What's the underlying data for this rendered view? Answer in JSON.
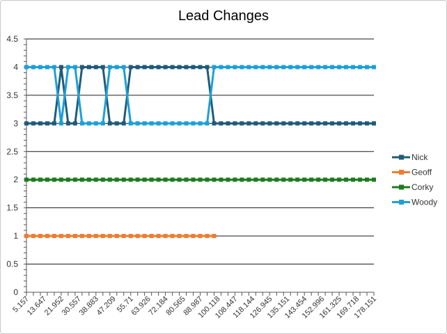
{
  "chart_data": {
    "type": "line",
    "title": "Lead Changes",
    "xlabel": "",
    "ylabel": "",
    "ylim": [
      0,
      4.5
    ],
    "yticks": [
      "0",
      "0.5",
      "1",
      "1.5",
      "2",
      "2.5",
      "3",
      "3.5",
      "4",
      "4.5"
    ],
    "x_tick_labels": [
      "5.157",
      "13.647",
      "21.952",
      "30.557",
      "38.883",
      "47.209",
      "55.71",
      "63.926",
      "72.184",
      "80.565",
      "88.987",
      "100.118",
      "108.447",
      "118.144",
      "126.945",
      "135.151",
      "143.454",
      "152.996",
      "161.325",
      "169.718",
      "178.151"
    ],
    "grid": true,
    "legend": "right",
    "series": [
      {
        "name": "Nick",
        "color": "#1f5b7a",
        "values": [
          3,
          3,
          3,
          3,
          3,
          4,
          3,
          3,
          4,
          4,
          4,
          4,
          3,
          3,
          3,
          4,
          4,
          4,
          4,
          4,
          4,
          4,
          4,
          4,
          4,
          4,
          4,
          3,
          3,
          3,
          3,
          3,
          3,
          3,
          3,
          3,
          3,
          3,
          3,
          3,
          3,
          3,
          3,
          3,
          3,
          3,
          3,
          3,
          3,
          3,
          3
        ]
      },
      {
        "name": "Geoff",
        "color": "#ed7d31",
        "values": [
          1,
          1,
          1,
          1,
          1,
          1,
          1,
          1,
          1,
          1,
          1,
          1,
          1,
          1,
          1,
          1,
          1,
          1,
          1,
          1,
          1,
          1,
          1,
          1,
          1,
          1,
          1,
          1
        ]
      },
      {
        "name": "Corky",
        "color": "#1e7b1e",
        "values": [
          2,
          2,
          2,
          2,
          2,
          2,
          2,
          2,
          2,
          2,
          2,
          2,
          2,
          2,
          2,
          2,
          2,
          2,
          2,
          2,
          2,
          2,
          2,
          2,
          2,
          2,
          2,
          2,
          2,
          2,
          2,
          2,
          2,
          2,
          2,
          2,
          2,
          2,
          2,
          2,
          2,
          2,
          2,
          2,
          2,
          2,
          2,
          2,
          2,
          2,
          2
        ]
      },
      {
        "name": "Woody",
        "color": "#1ca0d8",
        "values": [
          4,
          4,
          4,
          4,
          4,
          3,
          4,
          4,
          3,
          3,
          3,
          3,
          4,
          4,
          4,
          3,
          3,
          3,
          3,
          3,
          3,
          3,
          3,
          3,
          3,
          3,
          3,
          4,
          4,
          4,
          4,
          4,
          4,
          4,
          4,
          4,
          4,
          4,
          4,
          4,
          4,
          4,
          4,
          4,
          4,
          4,
          4,
          4,
          4,
          4,
          4
        ]
      }
    ]
  }
}
